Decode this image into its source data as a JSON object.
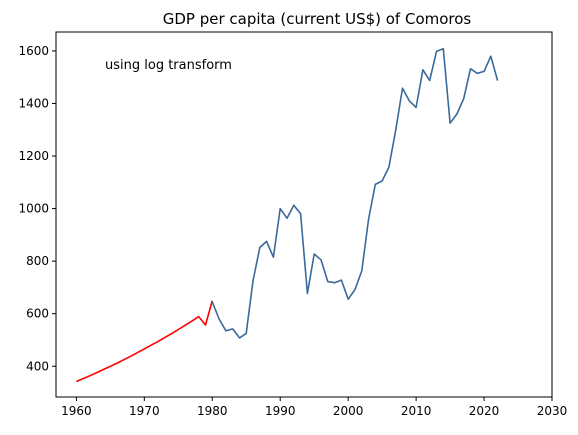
{
  "chart_data": {
    "type": "line",
    "title": "GDP per capita (current US$) of Comoros",
    "annotation": "using log transform",
    "xlabel": "",
    "ylabel": "",
    "xlim": [
      1957,
      2030
    ],
    "ylim": [
      283,
      1672
    ],
    "x_ticks": [
      1960,
      1970,
      1980,
      1990,
      2000,
      2010,
      2020,
      2030
    ],
    "y_ticks": [
      400,
      600,
      800,
      1000,
      1200,
      1400,
      1600
    ],
    "grid": false,
    "legend": "none",
    "series": [
      {
        "color": "#ff0000",
        "x": [
          1960,
          1961,
          1962,
          1963,
          1964,
          1965,
          1966,
          1967,
          1968,
          1969,
          1970,
          1971,
          1972,
          1973,
          1974,
          1975,
          1976,
          1977,
          1978,
          1979,
          1980
        ],
        "y": [
          342,
          353,
          364,
          376,
          388,
          400,
          412,
          425,
          438,
          452,
          466,
          480,
          494,
          509,
          524,
          540,
          556,
          572,
          589,
          557,
          650
        ]
      },
      {
        "color": "#3a6a9a",
        "x": [
          1980,
          1981,
          1982,
          1983,
          1984,
          1985,
          1986,
          1987,
          1988,
          1989,
          1990,
          1991,
          1992,
          1993,
          1994,
          1995,
          1996,
          1997,
          1998,
          1999,
          2000,
          2001,
          2002,
          2003,
          2004,
          2005,
          2006,
          2007,
          2008,
          2009,
          2010,
          2011,
          2012,
          2013,
          2014,
          2015,
          2016,
          2017,
          2018,
          2019,
          2020,
          2021,
          2022
        ],
        "y": [
          645,
          580,
          535,
          542,
          508,
          525,
          725,
          852,
          875,
          815,
          1000,
          963,
          1013,
          980,
          677,
          827,
          805,
          722,
          718,
          728,
          655,
          692,
          763,
          958,
          1092,
          1105,
          1158,
          1298,
          1458,
          1410,
          1385,
          1528,
          1488,
          1598,
          1608,
          1325,
          1360,
          1418,
          1532,
          1515,
          1522,
          1580,
          1487
        ]
      }
    ]
  }
}
